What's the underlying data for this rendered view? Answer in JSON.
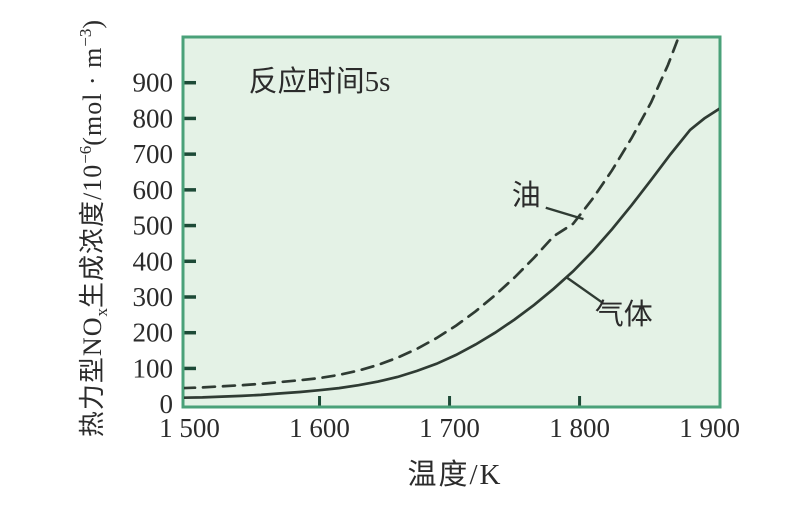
{
  "colors": {
    "plot_bg": "#e4f2e6",
    "border": "#4aa179",
    "curve": "#2f3b33",
    "tick": "#1d4a37",
    "text": "#2b2b2b"
  },
  "chart_data": {
    "type": "line",
    "title": "",
    "xlabel": "温度/K",
    "ylabel": "热力型NOx生成浓度/10−6(mol · m−3)",
    "ylabel_parts": [
      {
        "t": "热力型NO"
      },
      {
        "t": "x",
        "s": "sub"
      },
      {
        "t": "生成浓度/10"
      },
      {
        "t": "−6",
        "s": "sup"
      },
      {
        "t": "(mol · m"
      },
      {
        "t": "−3",
        "s": "sup"
      },
      {
        "t": ")"
      }
    ],
    "xlim": [
      1495,
      1908
    ],
    "ylim": [
      -8,
      1028
    ],
    "grid": false,
    "legend_position": "inline-labels",
    "x_ticks": {
      "marks": [
        1600,
        1700,
        1800
      ],
      "labels": [
        {
          "value": 1500,
          "label": "1 500"
        },
        {
          "value": 1600,
          "label": "1 600"
        },
        {
          "value": 1700,
          "label": "1 700"
        },
        {
          "value": 1800,
          "label": "1 800"
        },
        {
          "value": 1900,
          "label": "1 900"
        }
      ]
    },
    "y_ticks": {
      "marks": [
        100,
        200,
        300,
        400,
        500,
        600,
        700,
        800,
        900
      ],
      "labels": [
        {
          "value": 0,
          "label": "0"
        },
        {
          "value": 100,
          "label": "100"
        },
        {
          "value": 200,
          "label": "200"
        },
        {
          "value": 300,
          "label": "300"
        },
        {
          "value": 400,
          "label": "400"
        },
        {
          "value": 500,
          "label": "500"
        },
        {
          "value": 600,
          "label": "600"
        },
        {
          "value": 700,
          "label": "700"
        },
        {
          "value": 800,
          "label": "800"
        },
        {
          "value": 900,
          "label": "900"
        }
      ]
    },
    "annotation": {
      "text": "反应时间5s",
      "pos": [
        1600,
        905
      ]
    },
    "series": [
      {
        "id": "oil",
        "name": "油",
        "style": "dashed",
        "points": [
          [
            1495,
            45
          ],
          [
            1510,
            47
          ],
          [
            1525,
            50
          ],
          [
            1540,
            53
          ],
          [
            1555,
            57
          ],
          [
            1570,
            62
          ],
          [
            1585,
            67
          ],
          [
            1600,
            73
          ],
          [
            1615,
            82
          ],
          [
            1630,
            94
          ],
          [
            1645,
            110
          ],
          [
            1660,
            130
          ],
          [
            1675,
            155
          ],
          [
            1690,
            185
          ],
          [
            1705,
            220
          ],
          [
            1720,
            260
          ],
          [
            1735,
            305
          ],
          [
            1750,
            355
          ],
          [
            1765,
            410
          ],
          [
            1780,
            470
          ],
          [
            1795,
            505
          ],
          [
            1810,
            575
          ],
          [
            1825,
            655
          ],
          [
            1840,
            745
          ],
          [
            1855,
            845
          ],
          [
            1868,
            950
          ],
          [
            1878,
            1045
          ]
        ]
      },
      {
        "id": "gas",
        "name": "气体",
        "style": "solid",
        "points": [
          [
            1495,
            18
          ],
          [
            1510,
            19
          ],
          [
            1525,
            21
          ],
          [
            1540,
            23
          ],
          [
            1555,
            26
          ],
          [
            1570,
            30
          ],
          [
            1585,
            34
          ],
          [
            1600,
            39
          ],
          [
            1615,
            45
          ],
          [
            1630,
            53
          ],
          [
            1645,
            63
          ],
          [
            1660,
            76
          ],
          [
            1675,
            93
          ],
          [
            1690,
            113
          ],
          [
            1705,
            138
          ],
          [
            1720,
            167
          ],
          [
            1735,
            200
          ],
          [
            1750,
            237
          ],
          [
            1765,
            278
          ],
          [
            1780,
            323
          ],
          [
            1795,
            372
          ],
          [
            1810,
            428
          ],
          [
            1825,
            490
          ],
          [
            1840,
            557
          ],
          [
            1855,
            628
          ],
          [
            1870,
            700
          ],
          [
            1885,
            768
          ],
          [
            1896,
            800
          ],
          [
            1908,
            828
          ]
        ]
      }
    ],
    "labels": [
      {
        "id": "oil",
        "text": "油",
        "pos": [
          1759,
          585
        ],
        "leader": [
          [
            1774,
            550
          ],
          [
            1803,
            518
          ]
        ]
      },
      {
        "id": "gas",
        "text": "气体",
        "pos": [
          1834,
          252
        ],
        "leader": [
          [
            1790,
            355
          ],
          [
            1818,
            283
          ]
        ]
      }
    ]
  }
}
